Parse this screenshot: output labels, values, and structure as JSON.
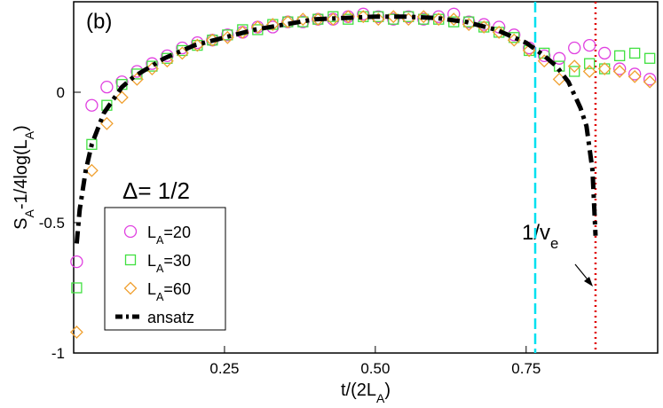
{
  "chart_data": {
    "type": "scatter",
    "panel_label": "(b)",
    "annotation": "Δ= 1/2",
    "arrow_label": [
      "1/v",
      "e"
    ],
    "x_label": [
      "t/(2L",
      "A",
      ")"
    ],
    "y_label": [
      "S",
      "A",
      "-1/4log(L",
      "A",
      ")"
    ],
    "xlim": [
      0,
      0.968
    ],
    "ylim": [
      -1,
      0.347
    ],
    "xticks": [
      0.25,
      {
        "value": 0.5,
        "label": "0.50"
      },
      0.75
    ],
    "yticks": [
      -1,
      -0.5,
      0
    ],
    "vlines": [
      {
        "x": 0.765,
        "color": "#00e0f0",
        "style": "dashed"
      },
      {
        "x": 0.865,
        "color": "#e00000",
        "style": "dotted"
      }
    ],
    "legend": "lower left",
    "series": [
      {
        "name": [
          "L",
          "A",
          "=20"
        ],
        "color": "#e040e0",
        "marker": "circle",
        "x": [
          0.005,
          0.03,
          0.055,
          0.08,
          0.105,
          0.13,
          0.155,
          0.18,
          0.205,
          0.23,
          0.255,
          0.28,
          0.305,
          0.33,
          0.355,
          0.38,
          0.405,
          0.43,
          0.455,
          0.48,
          0.505,
          0.53,
          0.555,
          0.58,
          0.605,
          0.63,
          0.655,
          0.68,
          0.705,
          0.73,
          0.755,
          0.78,
          0.805,
          0.83,
          0.855,
          0.88,
          0.905,
          0.93,
          0.955
        ],
        "values": [
          -0.65,
          -0.05,
          0.02,
          0.04,
          0.08,
          0.11,
          0.14,
          0.17,
          0.19,
          0.2,
          0.22,
          0.23,
          0.25,
          0.25,
          0.27,
          0.27,
          0.28,
          0.28,
          0.29,
          0.3,
          0.29,
          0.28,
          0.29,
          0.28,
          0.29,
          0.3,
          0.27,
          0.26,
          0.25,
          0.22,
          0.17,
          0.14,
          0.13,
          0.17,
          0.18,
          0.15,
          0.09,
          0.07,
          0.05
        ]
      },
      {
        "name": [
          "L",
          "A",
          "=30"
        ],
        "color": "#40e040",
        "marker": "square",
        "x": [
          0.005,
          0.03,
          0.055,
          0.08,
          0.105,
          0.13,
          0.155,
          0.18,
          0.205,
          0.23,
          0.255,
          0.28,
          0.305,
          0.33,
          0.355,
          0.38,
          0.405,
          0.43,
          0.455,
          0.48,
          0.505,
          0.53,
          0.555,
          0.58,
          0.605,
          0.63,
          0.655,
          0.68,
          0.705,
          0.73,
          0.755,
          0.78,
          0.805,
          0.83,
          0.855,
          0.88,
          0.905,
          0.93,
          0.955
        ],
        "values": [
          -0.75,
          -0.2,
          -0.05,
          0.03,
          0.07,
          0.1,
          0.13,
          0.16,
          0.18,
          0.2,
          0.22,
          0.24,
          0.24,
          0.26,
          0.27,
          0.27,
          0.28,
          0.29,
          0.28,
          0.29,
          0.29,
          0.28,
          0.29,
          0.28,
          0.28,
          0.27,
          0.27,
          0.25,
          0.23,
          0.21,
          0.16,
          0.15,
          0.1,
          0.08,
          0.11,
          0.09,
          0.14,
          0.15,
          0.13
        ]
      },
      {
        "name": [
          "L",
          "A",
          "=60"
        ],
        "color": "#f0a030",
        "marker": "diamond",
        "x": [
          0.005,
          0.03,
          0.055,
          0.08,
          0.105,
          0.13,
          0.155,
          0.18,
          0.205,
          0.23,
          0.255,
          0.28,
          0.305,
          0.33,
          0.355,
          0.38,
          0.405,
          0.43,
          0.455,
          0.48,
          0.505,
          0.53,
          0.555,
          0.58,
          0.605,
          0.63,
          0.655,
          0.68,
          0.705,
          0.73,
          0.755,
          0.78,
          0.805,
          0.83,
          0.855,
          0.88,
          0.905,
          0.93,
          0.955
        ],
        "values": [
          -0.92,
          -0.3,
          -0.12,
          -0.02,
          0.05,
          0.09,
          0.12,
          0.15,
          0.18,
          0.2,
          0.21,
          0.23,
          0.25,
          0.26,
          0.27,
          0.28,
          0.28,
          0.28,
          0.29,
          0.29,
          0.28,
          0.29,
          0.28,
          0.29,
          0.28,
          0.28,
          0.26,
          0.25,
          0.23,
          0.2,
          0.16,
          0.12,
          0.05,
          0.1,
          0.08,
          0.09,
          0.08,
          0.06,
          0.04
        ]
      },
      {
        "name": [
          "ansatz"
        ],
        "color": "#000000",
        "marker": "dashdot",
        "x": [
          0.005,
          0.01,
          0.02,
          0.03,
          0.05,
          0.08,
          0.1,
          0.15,
          0.2,
          0.25,
          0.3,
          0.35,
          0.4,
          0.45,
          0.5,
          0.55,
          0.6,
          0.65,
          0.7,
          0.75,
          0.78,
          0.8,
          0.82,
          0.84,
          0.85,
          0.86,
          0.865
        ],
        "values": [
          -0.58,
          -0.45,
          -0.3,
          -0.2,
          -0.08,
          0.02,
          0.06,
          0.13,
          0.18,
          0.21,
          0.24,
          0.26,
          0.28,
          0.285,
          0.29,
          0.29,
          0.285,
          0.27,
          0.24,
          0.19,
          0.14,
          0.1,
          0.04,
          -0.06,
          -0.13,
          -0.3,
          -0.55
        ]
      }
    ]
  }
}
